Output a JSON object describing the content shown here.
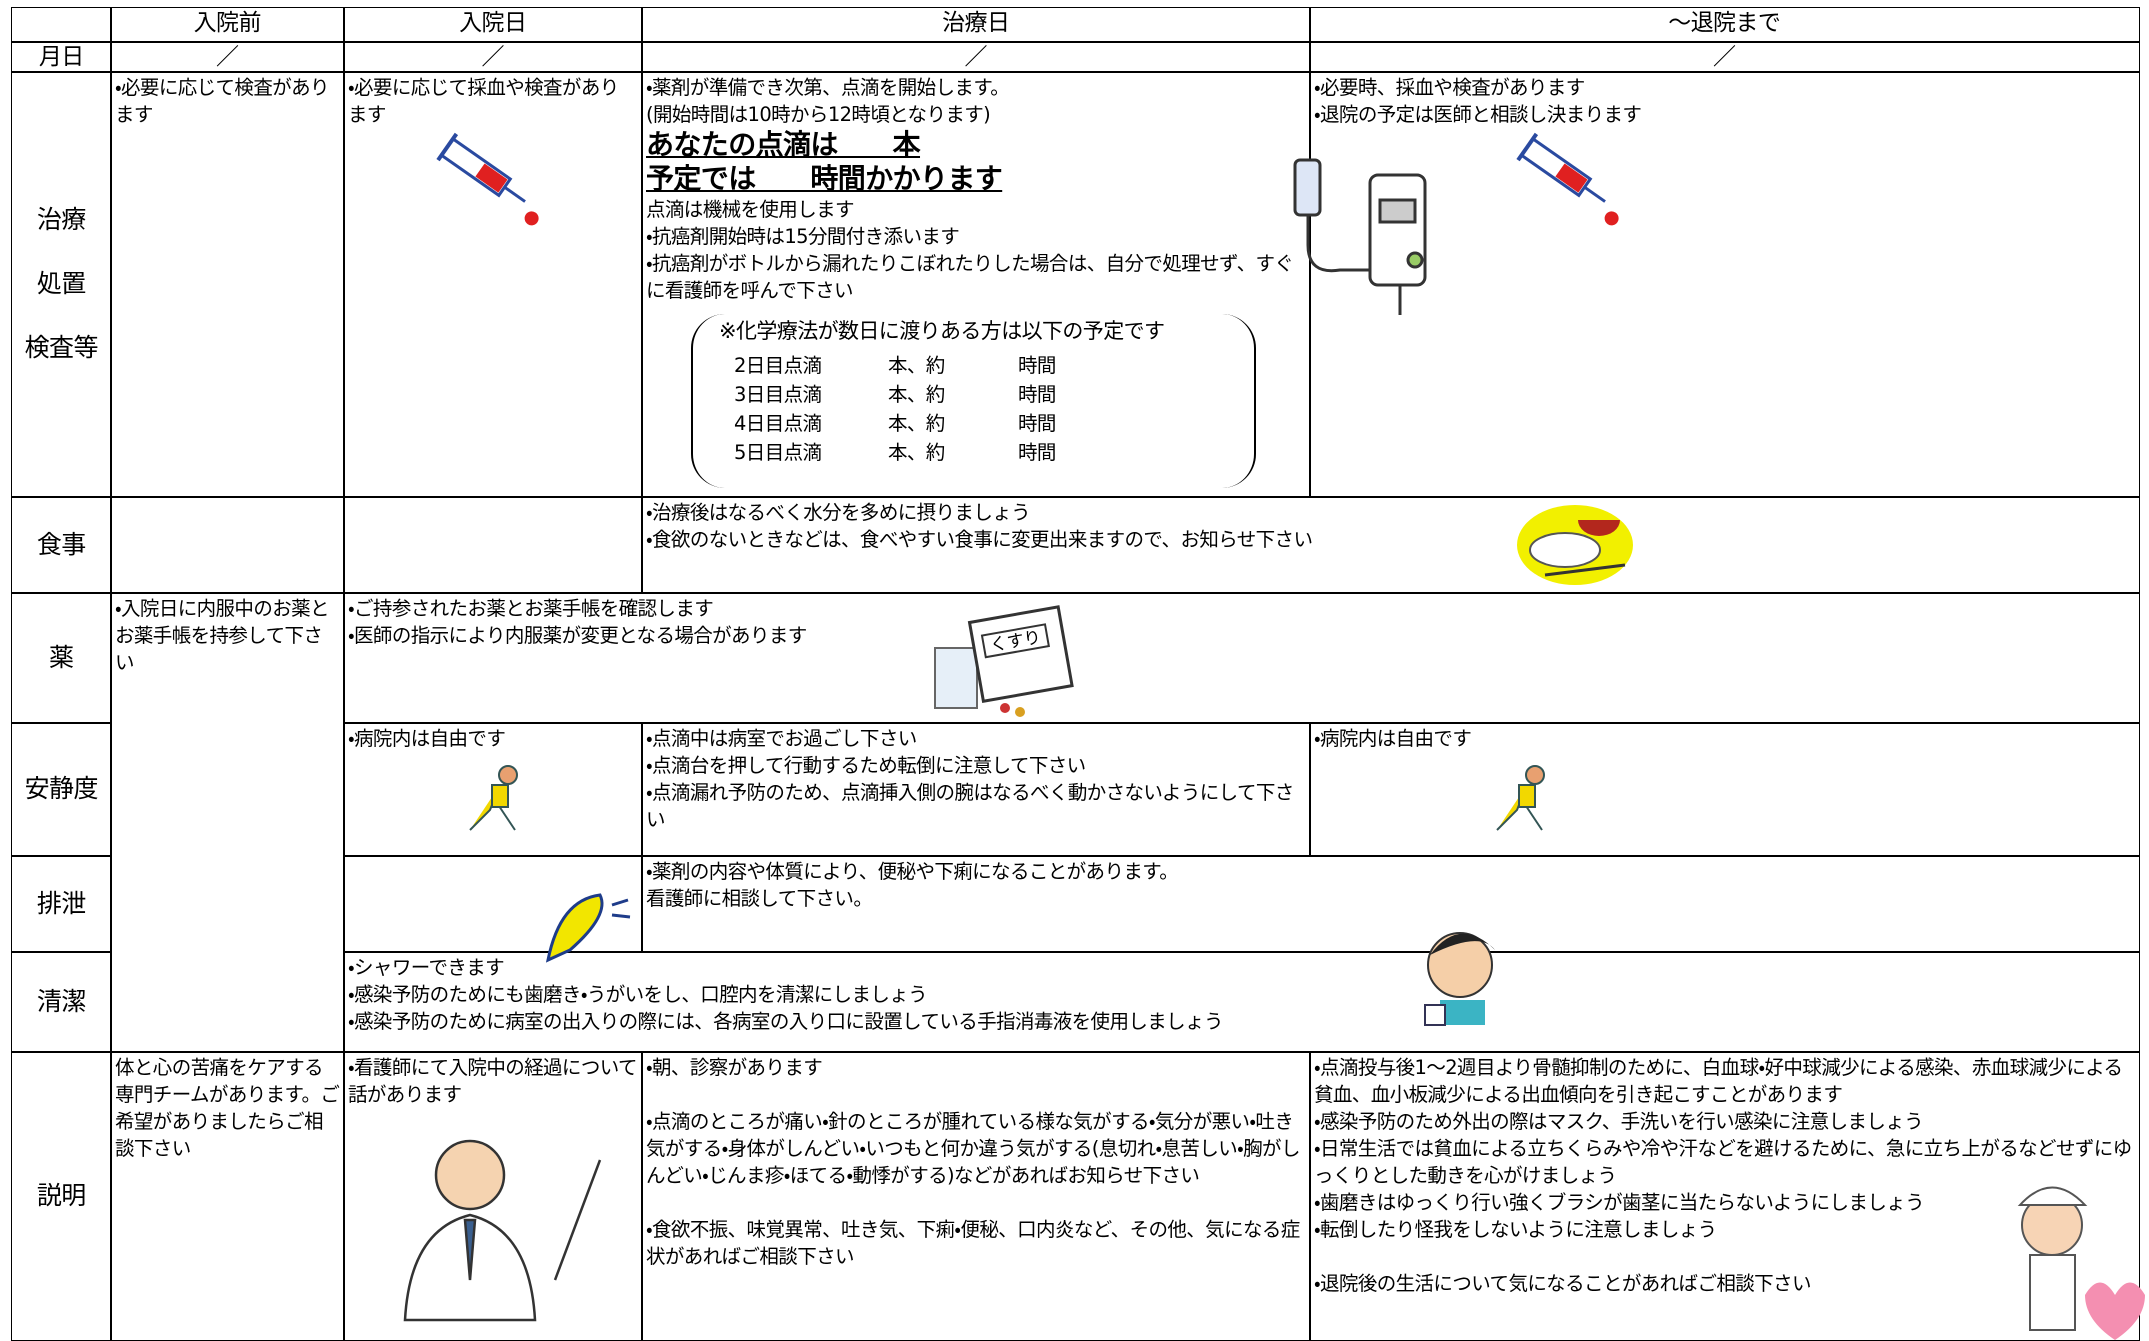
{
  "columns": [
    "入院前",
    "入院日",
    "治療日",
    "～退院まで"
  ],
  "date_label": "月日",
  "dates": [
    "／",
    "／",
    "／",
    "／"
  ],
  "treatment": {
    "label": [
      "治療",
      "処置",
      "検査等"
    ],
    "before": [
      "・必要に応じて検査があります"
    ],
    "admission": [
      "・必要に応じて採血や検査があります"
    ],
    "treatment_day": {
      "notes": [
        "・薬剤が準備でき次第、点滴を開始します。",
        "(開始時間は10時から12時頃となります)"
      ],
      "emphasis": [
        "あなたの点滴は　　本",
        "予定では　　時間かかります"
      ],
      "details": [
        "点滴は機械を使用します",
        "・抗癌剤開始時は15分間付き添います",
        "・抗癌剤がボトルから漏れたりこぼれたりした場合は、自分で処理せず、すぐに看護師を呼んで下さい"
      ],
      "schedule_title": "※化学療法が数日に渡りある方は以下の予定です",
      "schedule": [
        [
          "2日目点滴",
          "本、約",
          "時間"
        ],
        [
          "3日目点滴",
          "本、約",
          "時間"
        ],
        [
          "4日目点滴",
          "本、約",
          "時間"
        ],
        [
          "5日目点滴",
          "本、約",
          "時間"
        ]
      ]
    },
    "until_discharge": [
      "・必要時、採血や検査があります",
      "・退院の予定は医師と相談し決まります"
    ]
  },
  "meal": {
    "label": "食事",
    "treatment_to_discharge": [
      "・治療後はなるべく水分を多めに摂りましょう",
      "・食欲のないときなどは、食べやすい食事に変更出来ますので、お知らせ下さい"
    ]
  },
  "medicine": {
    "label": "薬",
    "before": [
      "・入院日に内服中のお薬とお薬手帳を持参して下さい"
    ],
    "admission_onward": [
      "・ご持参されたお薬とお薬手帳を確認します",
      "・医師の指示により内服薬が変更となる場合があります"
    ],
    "illustration_text": "くすり"
  },
  "activity": {
    "label": "安静度",
    "admission": [
      "・病院内は自由です"
    ],
    "treatment_day": [
      "・点滴中は病室でお過ごし下さい",
      "・点滴台を押して行動するため転倒に注意して下さい",
      "・点滴漏れ予防のため、点滴挿入側の腕はなるべく動かさないようにして下さい"
    ],
    "until_discharge": [
      "・病院内は自由です"
    ]
  },
  "excretion": {
    "label": "排泄",
    "treatment_to_discharge": [
      "・薬剤の内容や体質により、便秘や下痢になることがあります。",
      "看護師に相談して下さい。"
    ]
  },
  "hygiene": {
    "label": "清潔",
    "admission_onward": [
      "・シャワーできます",
      "・感染予防のためにも歯磨き・うがいをし、口腔内を清潔にしましょう",
      "・感染予防のために病室の出入りの際には、各病室の入り口に設置している手指消毒液を使用しましょう"
    ]
  },
  "explanation": {
    "label": "説明",
    "before": [
      "体と心の苦痛をケアする専門チームがあります。ご希望がありましたらご相談下さい"
    ],
    "admission": [
      "・看護師にて入院中の経過について話があります"
    ],
    "treatment_day": [
      "・朝、診察があります",
      "・点滴のところが痛い・針のところが腫れている様な気がする・気分が悪い・吐き気がする・身体がしんどい・いつもと何か違う気がする(息切れ・息苦しい・胸がしんどい・じんま疹・ほてる・動悸がする)などがあればお知らせ下さい",
      "・食欲不振、味覚異常、吐き気、下痢・便秘、口内炎など、その他、気になる症状があればご相談下さい"
    ],
    "until_discharge": [
      "・点滴投与後1～2週目より骨髄抑制のために、白血球・好中球減少による感染、赤血球減少による貧血、血小板減少による出血傾向を引き起こすことがあります",
      "・感染予防のため外出の際はマスク、手洗いを行い感染に注意しましょう",
      "・日常生活では貧血による立ちくらみや冷や汗などを避けるために、急に立ち上がるなどせずにゆっくりとした動きを心がけましょう",
      "・歯磨きはゆっくり行い強くブラシが歯茎に当たらないようにしましょう",
      "・転倒したり怪我をしないように注意しましょう",
      "・退院後の生活について気になることがあればご相談下さい"
    ]
  }
}
